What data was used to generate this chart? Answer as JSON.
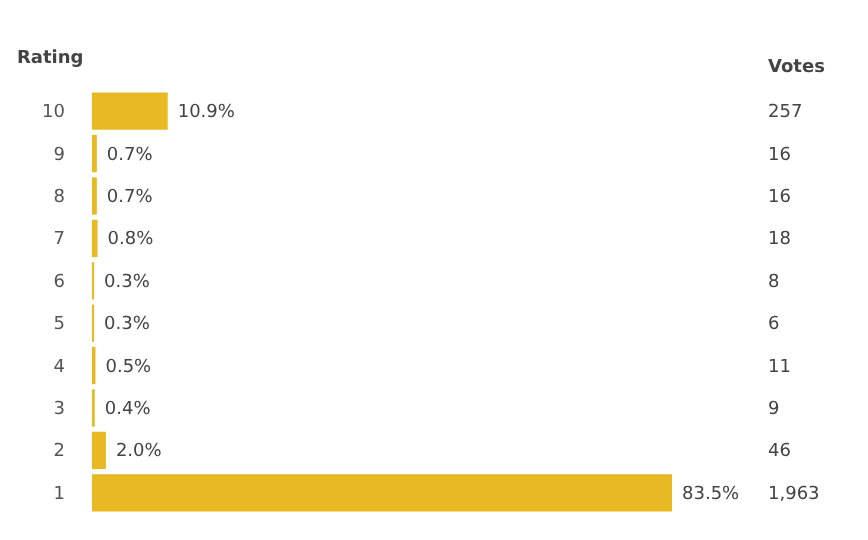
{
  "chart_data": {
    "type": "bar",
    "orientation": "horizontal",
    "ylabel": "Rating",
    "categories": [
      "10",
      "9",
      "8",
      "7",
      "6",
      "5",
      "4",
      "3",
      "2",
      "1"
    ],
    "values": [
      10.9,
      0.7,
      0.7,
      0.8,
      0.3,
      0.3,
      0.5,
      0.4,
      2.0,
      83.5
    ],
    "value_labels": [
      "10.9%",
      "0.7%",
      "0.7%",
      "0.8%",
      "0.3%",
      "0.3%",
      "0.5%",
      "0.4%",
      "2.0%",
      "83.5%"
    ],
    "color": "#e8b923",
    "annotations": [
      "Votes",
      "257",
      "16",
      "16",
      "18",
      "8",
      "6",
      "11",
      "9",
      "46",
      "1,963"
    ]
  }
}
